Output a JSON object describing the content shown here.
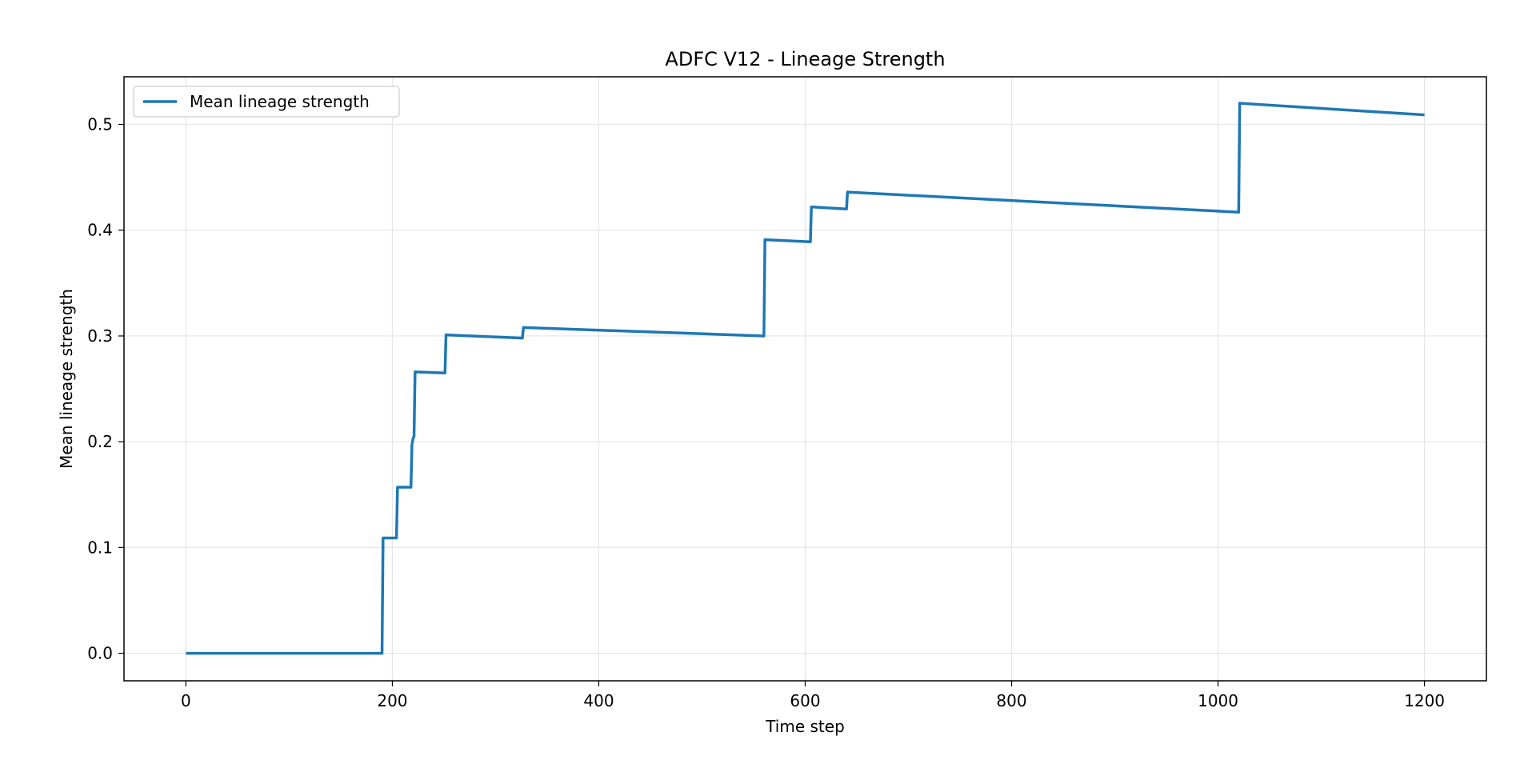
{
  "chart_data": {
    "type": "line",
    "title": "ADFC V12 - Lineage Strength",
    "xlabel": "Time step",
    "ylabel": "Mean lineage strength",
    "xlim": [
      -60,
      1260
    ],
    "ylim": [
      -0.026,
      0.545
    ],
    "xticks": [
      0,
      200,
      400,
      600,
      800,
      1000,
      1200
    ],
    "xtick_labels": [
      "0",
      "200",
      "400",
      "600",
      "800",
      "1000",
      "1200"
    ],
    "yticks": [
      0.0,
      0.1,
      0.2,
      0.3,
      0.4,
      0.5
    ],
    "ytick_labels": [
      "0.0",
      "0.1",
      "0.2",
      "0.3",
      "0.4",
      "0.5"
    ],
    "grid": true,
    "legend_position": "upper-left",
    "colors": {
      "series": "#1f77b4",
      "grid": "#e5e5e5",
      "axes": "#000000"
    },
    "series": [
      {
        "name": "Mean lineage strength",
        "x": [
          0,
          190,
          191,
          204,
          205,
          218,
          219,
          220,
          221,
          222,
          251,
          252,
          326,
          327,
          560,
          561,
          605,
          606,
          640,
          641,
          1020,
          1021,
          1200
        ],
        "y": [
          0.0,
          0.0,
          0.109,
          0.109,
          0.157,
          0.157,
          0.197,
          0.203,
          0.205,
          0.266,
          0.265,
          0.301,
          0.298,
          0.308,
          0.3,
          0.391,
          0.389,
          0.422,
          0.42,
          0.436,
          0.417,
          0.52,
          0.509
        ]
      }
    ]
  }
}
